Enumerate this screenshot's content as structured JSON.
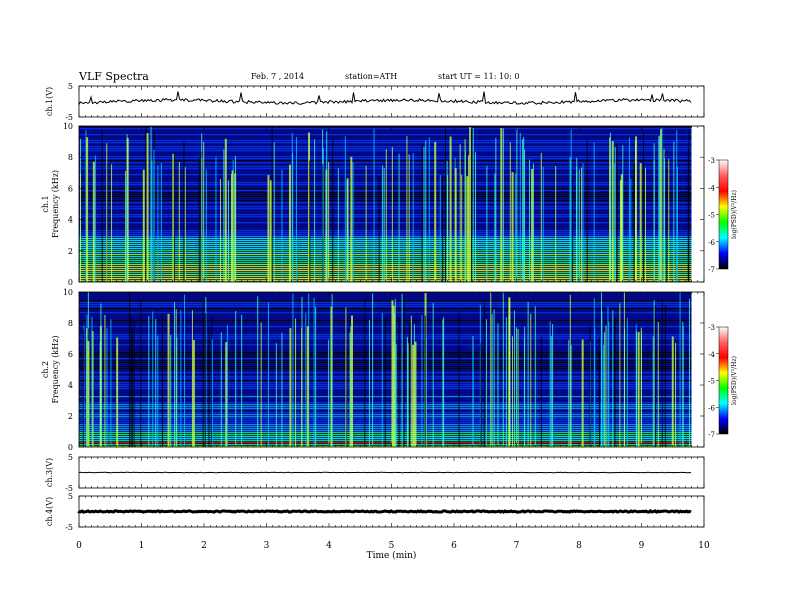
{
  "header": {
    "title": "VLF  Spectra",
    "date": "Feb. 7  , 2014",
    "station": "station=ATH",
    "start": "start  UT  =    11: 10: 0"
  },
  "colorbar": {
    "label": "log(PSD)(V²/Hz)",
    "ticks": [
      "-3",
      "-4",
      "-5",
      "-6",
      "-7"
    ],
    "colors": [
      "#ffffff",
      "#ff6060",
      "#ff0000",
      "#ffff00",
      "#00ff00",
      "#00ffff",
      "#0000ff",
      "#000000"
    ]
  },
  "chart_data": [
    {
      "type": "line",
      "panel": "ch1-waveform",
      "ylabel": "ch.1(V)",
      "ylim": [
        -5,
        5
      ],
      "yticks": [
        "5",
        "-5"
      ],
      "xlim": [
        0,
        10
      ],
      "baseline": 0,
      "color": "#000000"
    },
    {
      "type": "heatmap",
      "panel": "ch1-spectrogram",
      "ylabel": "ch.1\nFrequency (kHz)",
      "ylim": [
        0,
        10
      ],
      "yticks": [
        "10",
        "8",
        "6",
        "4",
        "2",
        "0"
      ],
      "xlim": [
        0,
        9.8
      ],
      "color_range": [
        -7,
        -3
      ]
    },
    {
      "type": "heatmap",
      "panel": "ch2-spectrogram",
      "ylabel": "ch.2\nFrequency (kHz)",
      "ylim": [
        0,
        10
      ],
      "yticks": [
        "10",
        "8",
        "6",
        "4",
        "2",
        "0"
      ],
      "xlim": [
        0,
        9.8
      ],
      "color_range": [
        -7,
        -3
      ]
    },
    {
      "type": "line",
      "panel": "ch3-waveform",
      "ylabel": "ch.3(V)",
      "ylim": [
        -5,
        5
      ],
      "yticks": [
        "5",
        "-5"
      ],
      "xlim": [
        0,
        10
      ],
      "baseline": 0,
      "color": "#000000"
    },
    {
      "type": "line",
      "panel": "ch4-waveform",
      "ylabel": "ch.4(V)",
      "ylim": [
        -5,
        5
      ],
      "yticks": [
        "5",
        "-5"
      ],
      "xlim": [
        0,
        10
      ],
      "baseline": 0,
      "color": "#000000"
    }
  ],
  "xaxis": {
    "label": "Time  (min)",
    "ticks": [
      "0",
      "1",
      "2",
      "3",
      "4",
      "5",
      "6",
      "7",
      "8",
      "9",
      "10"
    ]
  }
}
